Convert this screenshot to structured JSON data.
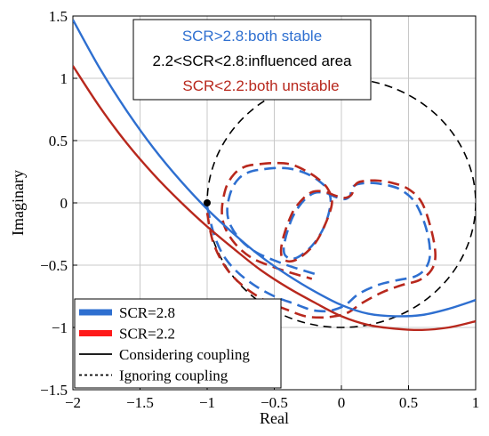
{
  "chart_data": {
    "type": "line",
    "xlabel": "Real",
    "ylabel": "Imaginary",
    "xlim": [
      -2,
      1
    ],
    "ylim": [
      -1.5,
      1.5
    ],
    "grid": true,
    "xticks": [
      -2,
      -1.5,
      -1,
      -0.5,
      0,
      0.5,
      1
    ],
    "yticks": [
      -1.5,
      -1,
      -0.5,
      0,
      0.5,
      1,
      1.5
    ],
    "xtick_labels": [
      "−2",
      "−1.5",
      "−1",
      "−0.5",
      "0",
      "0.5",
      "1"
    ],
    "ytick_labels": [
      "−1.5",
      "−1",
      "−0.5",
      "0",
      "0.5",
      "1",
      "1.5"
    ],
    "critical_point": {
      "x": -1,
      "y": 0
    },
    "unit_circle": {
      "center": [
        0,
        0
      ],
      "radius": 1,
      "style": "dashed",
      "color": "#000000"
    },
    "colors": {
      "scr_2_8": "#2e6fd0",
      "scr_2_2": "#b8281d"
    },
    "annotation_box": {
      "lines": [
        {
          "text": "SCR>2.8:both stable",
          "color": "#2e6fd0"
        },
        {
          "text": "2.2<SCR<2.8:influenced area",
          "color": "#000000"
        },
        {
          "text": "SCR<2.2:both unstable",
          "color": "#b8281d"
        }
      ]
    },
    "legend": {
      "position": "bottom-left",
      "entries": [
        {
          "label": "SCR=2.8",
          "kind": "color",
          "color": "#2e6fd0"
        },
        {
          "label": "SCR=2.2",
          "kind": "color",
          "color": "#ff1a1a"
        },
        {
          "label": "Considering coupling",
          "kind": "solid",
          "color": "#000000"
        },
        {
          "label": "Ignoring coupling",
          "kind": "dotted",
          "color": "#000000"
        }
      ]
    },
    "series": [
      {
        "id": "solid-blue",
        "color": "#2e6fd0",
        "style": "solid",
        "x": [
          -2.0,
          -1.8,
          -1.6,
          -1.4,
          -1.2,
          -1.0,
          -0.8,
          -0.6,
          -0.4,
          -0.2,
          0.0,
          0.2,
          0.4,
          0.6,
          0.8,
          1.0
        ],
        "y": [
          1.47,
          1.08,
          0.74,
          0.44,
          0.18,
          -0.05,
          -0.25,
          -0.43,
          -0.58,
          -0.71,
          -0.82,
          -0.89,
          -0.91,
          -0.9,
          -0.85,
          -0.78
        ]
      },
      {
        "id": "solid-red",
        "color": "#b8281d",
        "style": "solid",
        "x": [
          -2.0,
          -1.8,
          -1.6,
          -1.4,
          -1.2,
          -1.0,
          -0.8,
          -0.6,
          -0.4,
          -0.2,
          0.0,
          0.2,
          0.4,
          0.6,
          0.8,
          1.0
        ],
        "y": [
          1.1,
          0.77,
          0.48,
          0.23,
          0.01,
          -0.19,
          -0.37,
          -0.54,
          -0.68,
          -0.8,
          -0.91,
          -0.98,
          -1.01,
          -1.02,
          -1.0,
          -0.95
        ]
      },
      {
        "id": "dashed-blue",
        "color": "#2e6fd0",
        "style": "dashed",
        "x": [
          -1.0,
          -0.95,
          -0.88,
          -0.78,
          -0.65,
          -0.5,
          -0.35,
          -0.22,
          -0.12,
          -0.06,
          0.03,
          0.13,
          0.27,
          0.42,
          0.55,
          0.63,
          0.66,
          0.63,
          0.55,
          0.45,
          0.35,
          0.22,
          0.12,
          0.08,
          0.07,
          0.06,
          0.02,
          -0.05,
          -0.12,
          -0.2,
          -0.27,
          -0.33,
          -0.37,
          -0.4,
          -0.42,
          -0.43,
          -0.42,
          -0.37,
          -0.3,
          -0.2,
          -0.12,
          -0.08,
          -0.1,
          -0.16,
          -0.25,
          -0.36,
          -0.47,
          -0.58,
          -0.68,
          -0.76,
          -0.82,
          -0.85,
          -0.83,
          -0.75,
          -0.63,
          -0.48,
          -0.35,
          -0.2
        ],
        "y": [
          -0.03,
          -0.25,
          -0.42,
          -0.55,
          -0.66,
          -0.75,
          -0.81,
          -0.86,
          -0.87,
          -0.86,
          -0.82,
          -0.73,
          -0.66,
          -0.62,
          -0.59,
          -0.52,
          -0.4,
          -0.2,
          0.0,
          0.1,
          0.14,
          0.16,
          0.15,
          0.12,
          0.08,
          0.05,
          0.03,
          0.05,
          0.08,
          0.08,
          0.03,
          -0.05,
          -0.13,
          -0.22,
          -0.3,
          -0.37,
          -0.42,
          -0.45,
          -0.42,
          -0.32,
          -0.17,
          0.0,
          0.1,
          0.17,
          0.23,
          0.27,
          0.28,
          0.27,
          0.25,
          0.2,
          0.1,
          -0.05,
          -0.17,
          -0.3,
          -0.4,
          -0.47,
          -0.52,
          -0.57
        ]
      },
      {
        "id": "dashed-red",
        "color": "#b8281d",
        "style": "dashed",
        "x": [
          -1.0,
          -0.96,
          -0.89,
          -0.8,
          -0.68,
          -0.54,
          -0.4,
          -0.27,
          -0.15,
          -0.05,
          0.05,
          0.16,
          0.3,
          0.45,
          0.58,
          0.67,
          0.7,
          0.67,
          0.6,
          0.5,
          0.38,
          0.25,
          0.14,
          0.1,
          0.09,
          0.07,
          0.02,
          -0.05,
          -0.13,
          -0.21,
          -0.28,
          -0.35,
          -0.39,
          -0.42,
          -0.44,
          -0.45,
          -0.44,
          -0.39,
          -0.31,
          -0.2,
          -0.12,
          -0.07,
          -0.1,
          -0.17,
          -0.27,
          -0.38,
          -0.5,
          -0.62,
          -0.72,
          -0.8,
          -0.86,
          -0.89,
          -0.87,
          -0.79,
          -0.67,
          -0.52,
          -0.38,
          -0.22
        ],
        "y": [
          -0.08,
          -0.3,
          -0.47,
          -0.6,
          -0.71,
          -0.8,
          -0.86,
          -0.91,
          -0.92,
          -0.91,
          -0.88,
          -0.8,
          -0.72,
          -0.66,
          -0.62,
          -0.54,
          -0.42,
          -0.22,
          0.0,
          0.11,
          0.16,
          0.18,
          0.17,
          0.14,
          0.1,
          0.06,
          0.04,
          0.06,
          0.09,
          0.09,
          0.04,
          -0.05,
          -0.14,
          -0.23,
          -0.31,
          -0.38,
          -0.44,
          -0.47,
          -0.44,
          -0.33,
          -0.17,
          0.0,
          0.11,
          0.19,
          0.26,
          0.31,
          0.32,
          0.31,
          0.29,
          0.23,
          0.12,
          -0.05,
          -0.19,
          -0.33,
          -0.44,
          -0.51,
          -0.56,
          -0.61
        ]
      }
    ]
  }
}
